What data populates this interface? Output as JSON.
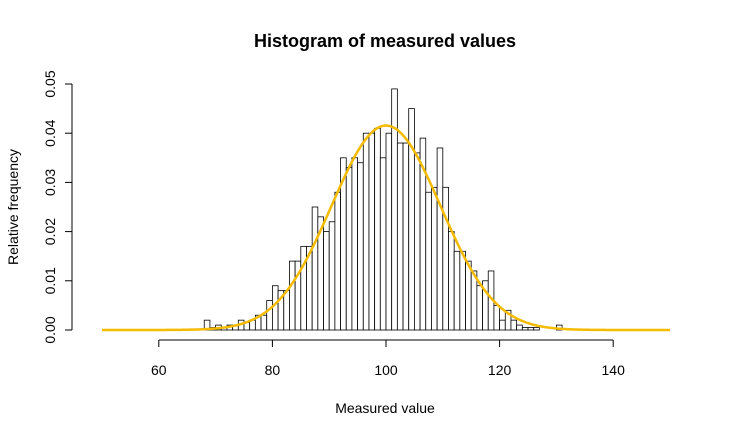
{
  "chart_data": {
    "type": "bar",
    "title": "Histogram of measured values",
    "xlabel": "Measured value",
    "ylabel": "Relative frequency",
    "xlim": [
      50,
      150
    ],
    "ylim": [
      0,
      0.05
    ],
    "x_ticks": [
      60,
      80,
      100,
      120,
      140
    ],
    "x_tick_labels": [
      "60",
      "80",
      "100",
      "120",
      "140"
    ],
    "y_ticks": [
      0,
      0.01,
      0.02,
      0.03,
      0.04,
      0.05
    ],
    "y_tick_labels": [
      "0.00",
      "0.01",
      "0.02",
      "0.03",
      "0.04",
      "0.05"
    ],
    "bin_width": 1,
    "bin_starts": [
      68,
      69,
      70,
      71,
      72,
      73,
      74,
      75,
      76,
      77,
      78,
      79,
      80,
      81,
      82,
      83,
      84,
      85,
      86,
      87,
      88,
      89,
      90,
      91,
      92,
      93,
      94,
      95,
      96,
      97,
      98,
      99,
      100,
      101,
      102,
      103,
      104,
      105,
      106,
      107,
      108,
      109,
      110,
      111,
      112,
      113,
      114,
      115,
      116,
      117,
      118,
      119,
      120,
      121,
      122,
      123,
      124,
      125,
      126,
      127,
      128,
      129,
      130
    ],
    "values": [
      0.002,
      0.0005,
      0.001,
      0.0005,
      0.001,
      0.001,
      0.002,
      0.0015,
      0.002,
      0.003,
      0.003,
      0.006,
      0.009,
      0.008,
      0.008,
      0.014,
      0.014,
      0.017,
      0.017,
      0.025,
      0.023,
      0.02,
      0.022,
      0.028,
      0.035,
      0.033,
      0.035,
      0.034,
      0.04,
      0.04,
      0.041,
      0.035,
      0.04,
      0.049,
      0.038,
      0.038,
      0.045,
      0.036,
      0.039,
      0.028,
      0.029,
      0.037,
      0.029,
      0.02,
      0.016,
      0.016,
      0.014,
      0.012,
      0.009,
      0.01,
      0.012,
      0.005,
      0.002,
      0.004,
      0.002,
      0.001,
      0.0005,
      0.0005,
      0.0005,
      0,
      0,
      0,
      0.001
    ],
    "density_curve": {
      "type": "line",
      "mean": 100,
      "sd": 9.6,
      "x_range": [
        50,
        150
      ],
      "color": "#F5BB00"
    },
    "grid": false,
    "legend": "none"
  }
}
